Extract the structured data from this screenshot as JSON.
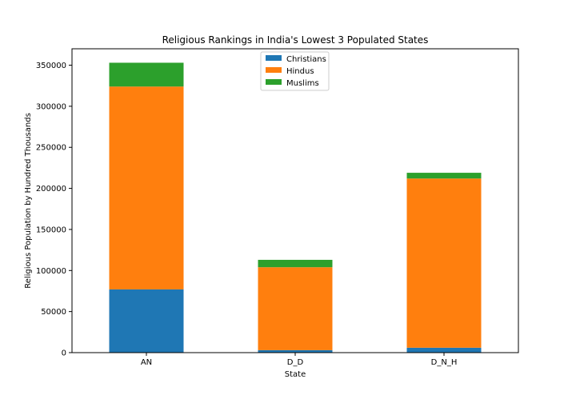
{
  "chart_data": {
    "type": "bar",
    "stacked": true,
    "title": "Religious Rankings in India's Lowest 3 Populated States",
    "xlabel": "State",
    "ylabel": "Religious Population by Hundred Thousands",
    "categories": [
      "AN",
      "D_D",
      "D_N_H"
    ],
    "series": [
      {
        "name": "Christians",
        "color": "#1f77b4",
        "values": [
          77000,
          3000,
          6000
        ]
      },
      {
        "name": "Hindus",
        "color": "#ff7f0e",
        "values": [
          247000,
          101000,
          206000
        ]
      },
      {
        "name": "Muslims",
        "color": "#2ca02c",
        "values": [
          29000,
          9000,
          7000
        ]
      }
    ],
    "ylim": [
      0,
      370000
    ],
    "yticks": [
      0,
      50000,
      100000,
      150000,
      200000,
      250000,
      300000,
      350000
    ],
    "ytick_labels": [
      "0",
      "50000",
      "100000",
      "150000",
      "200000",
      "250000",
      "300000",
      "350000"
    ],
    "grid": false,
    "legend_position": "top-center"
  }
}
